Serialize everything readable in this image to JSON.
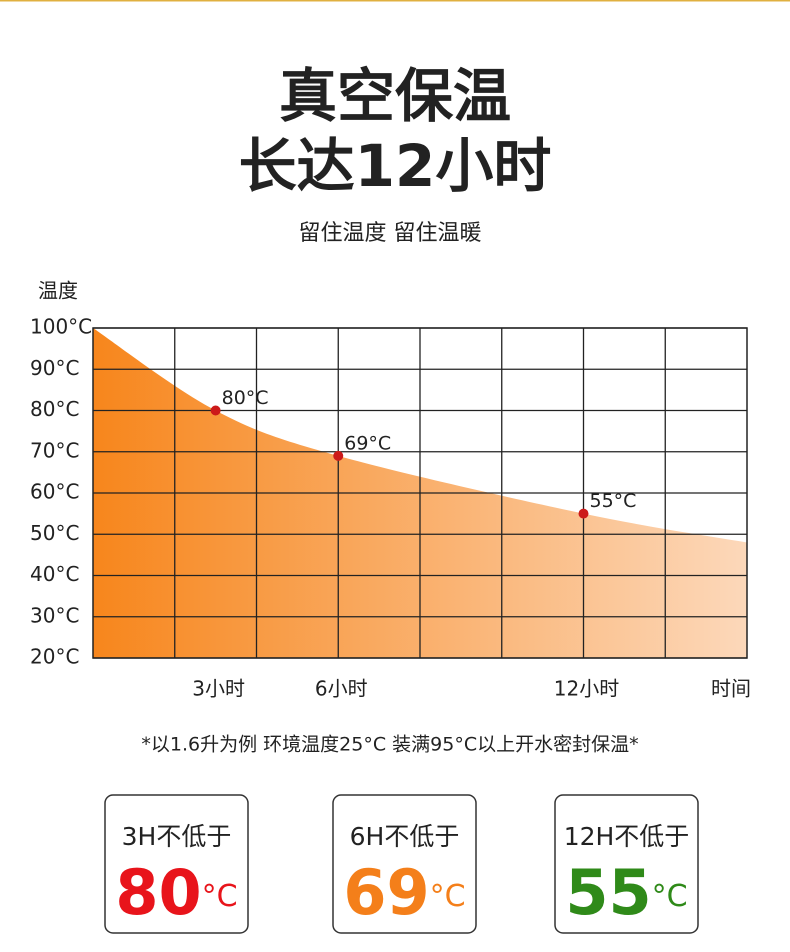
{
  "header": {
    "title_lines": [
      "真空保温",
      "长达12小时"
    ],
    "subtitle": "留住温度 留住温暖"
  },
  "chart_data": {
    "type": "area",
    "y_label": "温度",
    "x_label": "时间",
    "x": [
      0,
      3,
      6,
      12,
      16
    ],
    "values": [
      100,
      80,
      69,
      55,
      48
    ],
    "value_labels": [
      null,
      "80°C",
      "69°C",
      "55°C",
      null
    ],
    "color_start": "#f7861c",
    "color_end": "#fcd8ba",
    "point_color": "#cc1a1a",
    "xlim": [
      0,
      16
    ],
    "ylim": [
      20,
      100
    ],
    "xticks": [
      {
        "value": 3,
        "label": "3小时"
      },
      {
        "value": 6,
        "label": "6小时"
      },
      {
        "value": 12,
        "label": "12小时"
      }
    ],
    "yticks": [
      {
        "value": 100,
        "label": "100°C"
      },
      {
        "value": 90,
        "label": "90°C"
      },
      {
        "value": 80,
        "label": "80°C"
      },
      {
        "value": 70,
        "label": "70°C"
      },
      {
        "value": 60,
        "label": "60°C"
      },
      {
        "value": 50,
        "label": "50°C"
      },
      {
        "value": 40,
        "label": "40°C"
      },
      {
        "value": 30,
        "label": "30°C"
      },
      {
        "value": 20,
        "label": "20°C"
      }
    ],
    "grid": true
  },
  "footnote": "*以1.6升为例 环境温度25°C 装满95°C以上开水密封保温*",
  "cards": [
    {
      "label": "3H不低于",
      "value": 80,
      "unit": "°C",
      "color": "#e8141b"
    },
    {
      "label": "6H不低于",
      "value": 69,
      "unit": "°C",
      "color": "#f47f1a"
    },
    {
      "label": "12H不低于",
      "value": 55,
      "unit": "°C",
      "color": "#2f8a19"
    }
  ]
}
